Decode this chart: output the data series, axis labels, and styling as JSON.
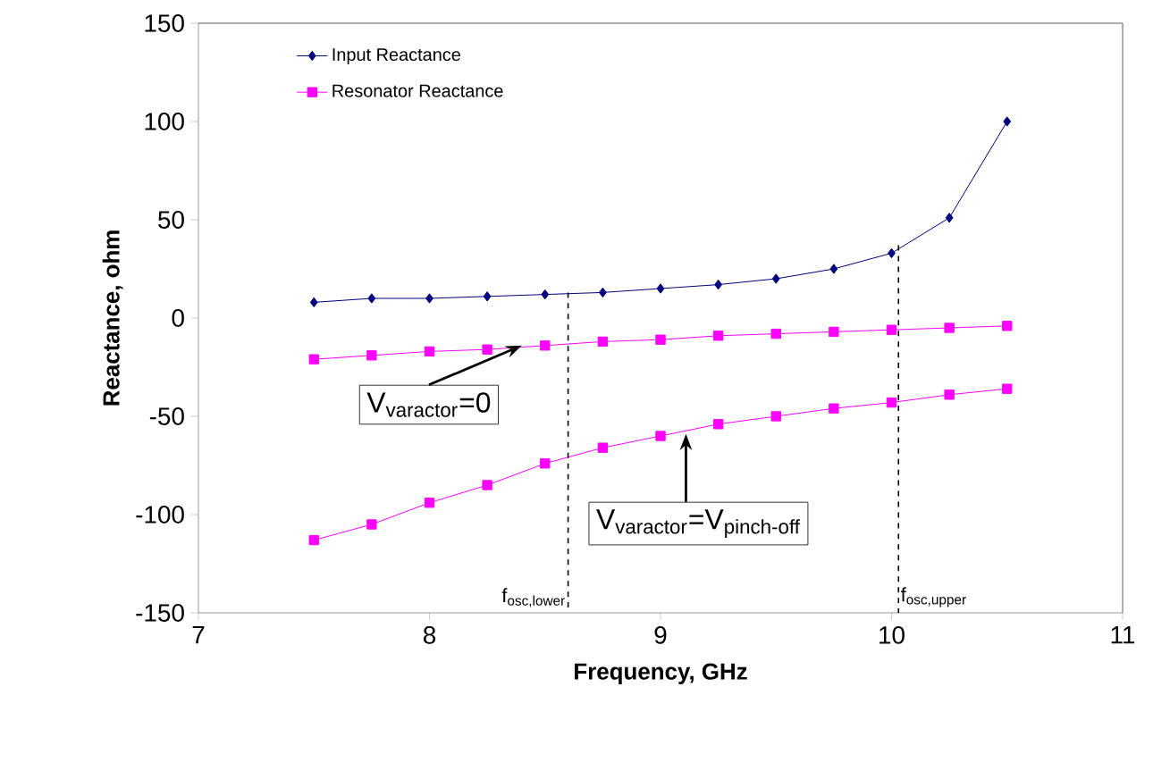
{
  "chart_data": {
    "type": "line",
    "xlabel": "Frequency, GHz",
    "ylabel": "Reactance, ohm",
    "xlim": [
      7,
      11
    ],
    "xticks": [
      7,
      8,
      9,
      10,
      11
    ],
    "ylim": [
      -150,
      150
    ],
    "yticks": [
      -150,
      -100,
      -50,
      0,
      50,
      100,
      150
    ],
    "grid": false,
    "legend": "top left",
    "line_style": "solid",
    "series": [
      {
        "name": "Input Reactance",
        "color": "#000080",
        "marker": "diamond",
        "x": [
          7.5,
          7.75,
          8,
          8.25,
          8.5,
          8.75,
          9,
          9.25,
          9.5,
          9.75,
          10,
          10.25,
          10.5
        ],
        "values": [
          8,
          10,
          10,
          11,
          12,
          13,
          15,
          17,
          20,
          25,
          33,
          51,
          100
        ]
      },
      {
        "name": "Resonator Reactance",
        "color": "#ff00ff",
        "marker": "square",
        "x": [
          7.5,
          7.75,
          8,
          8.25,
          8.5,
          8.75,
          9,
          9.25,
          9.5,
          9.75,
          10,
          10.25,
          10.5
        ],
        "values": [
          -21,
          -19,
          -17,
          -16,
          -14,
          -12,
          -11,
          -9,
          -8,
          -7,
          -6,
          -5,
          -4
        ]
      },
      {
        "color": "#ff00ff",
        "marker": "square",
        "x": [
          7.5,
          7.75,
          8,
          8.25,
          8.5,
          8.75,
          9,
          9.25,
          9.5,
          9.75,
          10,
          10.25,
          10.5
        ],
        "values": [
          -113,
          -105,
          -94,
          -85,
          -74,
          -66,
          -60,
          -54,
          -50,
          -46,
          -43,
          -39,
          -36
        ]
      },
      {
        "type": "line",
        "color": "#000000",
        "marker": "none",
        "line_style": "dashed",
        "x": [
          8.6,
          8.6
        ],
        "values": [
          13,
          -150
        ]
      },
      {
        "type": "line",
        "color": "#000000",
        "marker": "none",
        "line_style": "dashed",
        "x": [
          10.03,
          10.03
        ],
        "values": [
          37,
          -150
        ]
      }
    ],
    "annotations": [
      {
        "text": "V$_{varactor}$=0",
        "x": 8.4,
        "y": -14
      },
      {
        "text": "V$_{varactor}$=V$_{pinch-off}$",
        "x": 9.11,
        "y": -59
      },
      {
        "text": "f$_{osc,lower}$",
        "x": 8.6,
        "y": -150
      },
      {
        "text": "f$_{osc,upper}$",
        "x": 10.03,
        "y": -150
      }
    ]
  }
}
